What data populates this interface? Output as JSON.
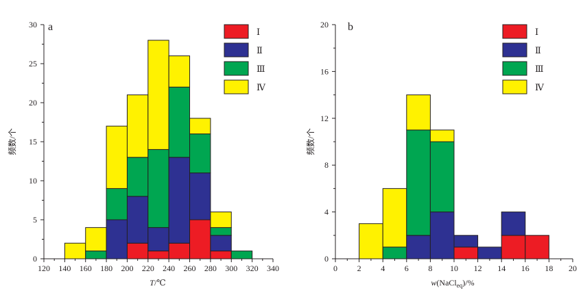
{
  "chart_data": [
    {
      "panel": "a",
      "type": "bar",
      "stacked": true,
      "xlabel": "T/℃",
      "ylabel": "频数/个",
      "xlim": [
        120,
        340
      ],
      "ylim": [
        0,
        30
      ],
      "xticks": [
        120,
        140,
        160,
        180,
        200,
        220,
        240,
        260,
        280,
        300,
        320,
        340
      ],
      "yticks": [
        0,
        5,
        10,
        15,
        20,
        25,
        30
      ],
      "bin_width": 20,
      "bins": [
        140,
        160,
        180,
        200,
        220,
        240,
        260,
        280,
        300
      ],
      "series": [
        {
          "name": "Ⅰ",
          "color": "#ed1c24",
          "values": [
            0,
            0,
            0,
            2,
            1,
            2,
            5,
            1,
            0
          ]
        },
        {
          "name": "Ⅱ",
          "color": "#2e3192",
          "values": [
            0,
            0,
            5,
            6,
            3,
            11,
            6,
            2,
            0
          ]
        },
        {
          "name": "Ⅲ",
          "color": "#00a651",
          "values": [
            0,
            1,
            4,
            5,
            10,
            9,
            5,
            1,
            1
          ]
        },
        {
          "name": "Ⅳ",
          "color": "#fff200",
          "values": [
            2,
            3,
            8,
            8,
            14,
            4,
            2,
            2,
            0
          ]
        }
      ],
      "legend_position": "top-right",
      "grid": false
    },
    {
      "panel": "b",
      "type": "bar",
      "stacked": true,
      "xlabel": "w(NaCleq)/%",
      "ylabel": "频数/个",
      "xlim": [
        0,
        20
      ],
      "ylim": [
        0,
        20
      ],
      "xticks": [
        0,
        2,
        4,
        6,
        8,
        10,
        12,
        14,
        16,
        18,
        20
      ],
      "yticks": [
        0,
        4,
        8,
        12,
        16,
        20
      ],
      "bin_width": 2,
      "bins": [
        2,
        4,
        6,
        8,
        10,
        12,
        14,
        16
      ],
      "series": [
        {
          "name": "Ⅰ",
          "color": "#ed1c24",
          "values": [
            0,
            0,
            0,
            0,
            1,
            0,
            2,
            2
          ]
        },
        {
          "name": "Ⅱ",
          "color": "#2e3192",
          "values": [
            0,
            0,
            2,
            4,
            1,
            1,
            2,
            0
          ]
        },
        {
          "name": "Ⅲ",
          "color": "#00a651",
          "values": [
            0,
            1,
            9,
            6,
            0,
            0,
            0,
            0
          ]
        },
        {
          "name": "Ⅳ",
          "color": "#fff200",
          "values": [
            3,
            5,
            3,
            1,
            0,
            0,
            0,
            0
          ]
        }
      ],
      "legend_position": "top-right",
      "grid": false
    }
  ]
}
